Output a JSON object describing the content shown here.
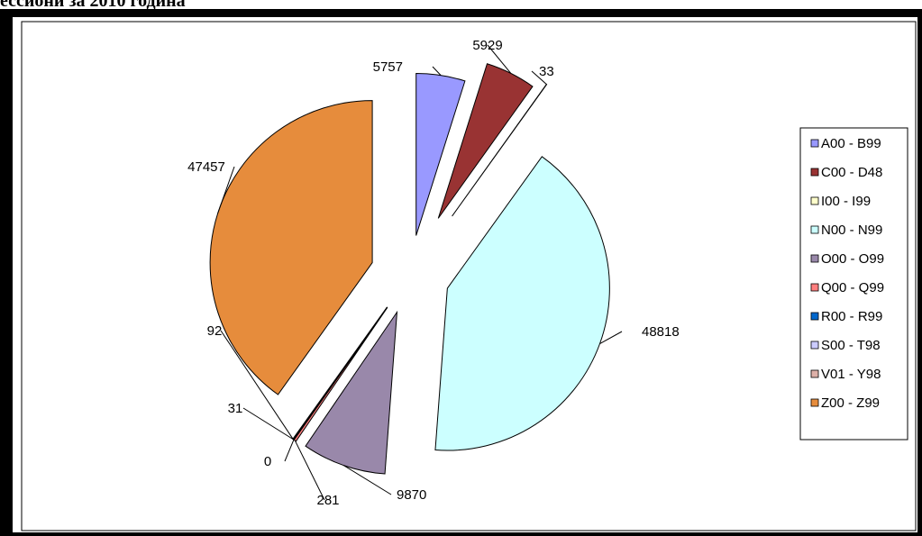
{
  "page": {
    "title_fragment": "ессиони за 2010 година"
  },
  "colors": {
    "frame": "#000000",
    "background": "#ffffff"
  },
  "chart_data": {
    "type": "pie",
    "title": "",
    "legend_position": "right",
    "exploded": true,
    "slices": [
      {
        "label": "A00 - B99",
        "value": 5757,
        "color": "#9999ff"
      },
      {
        "label": "C00 - D48",
        "value": 5929,
        "color": "#993333"
      },
      {
        "label": "I00 - I99",
        "value": 33,
        "color": "#ffffcc"
      },
      {
        "label": "N00 - N99",
        "value": 48818,
        "color": "#ccffff"
      },
      {
        "label": "O00 - O99",
        "value": 9870,
        "color": "#9988aa"
      },
      {
        "label": "Q00 - Q99",
        "value": 281,
        "color": "#ff7f7f"
      },
      {
        "label": "R00 - R99",
        "value": 0,
        "color": "#0066cc"
      },
      {
        "label": "S00 - T98",
        "value": 31,
        "color": "#ccccff"
      },
      {
        "label": "V01 - Y98",
        "value": 92,
        "color": "#ddb0a8"
      },
      {
        "label": "Z00 - Z99",
        "value": 47457,
        "color": "#e68c3c"
      }
    ]
  }
}
